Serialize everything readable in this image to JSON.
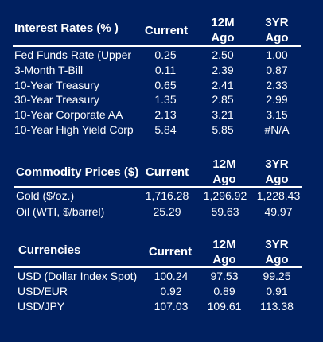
{
  "interest_rates": {
    "title": "Interest Rates (% )",
    "columns": [
      "Current",
      "12M\nAgo",
      "3YR\nAgo"
    ],
    "rows": [
      {
        "name": "Fed Funds Rate (Upper",
        "current": "0.25",
        "ago_12m": "2.50",
        "ago_3yr": "1.00"
      },
      {
        "name": "3-Month T-Bill",
        "current": "0.11",
        "ago_12m": "2.39",
        "ago_3yr": "0.87"
      },
      {
        "name": "10-Year Treasury",
        "current": "0.65",
        "ago_12m": "2.41",
        "ago_3yr": "2.33"
      },
      {
        "name": "30-Year Treasury",
        "current": "1.35",
        "ago_12m": "2.85",
        "ago_3yr": "2.99"
      },
      {
        "name": "10-Year Corporate AA",
        "current": "2.13",
        "ago_12m": "3.21",
        "ago_3yr": "3.15"
      },
      {
        "name": "10-Year High Yield Corp",
        "current": "5.84",
        "ago_12m": "5.85",
        "ago_3yr": "#N/A"
      }
    ]
  },
  "commodity_prices": {
    "title": "Commodity Prices ($)",
    "columns": [
      "Current",
      "12M\nAgo",
      "3YR\nAgo"
    ],
    "rows": [
      {
        "name": "Gold    ($/oz.)",
        "current": "1,716.28",
        "ago_12m": "1,296.92",
        "ago_3yr": "1,228.43"
      },
      {
        "name": "Oil (WTI, $/barrel)",
        "current": "25.29",
        "ago_12m": "59.63",
        "ago_3yr": "49.97"
      }
    ]
  },
  "currencies": {
    "title": "Currencies",
    "columns": [
      "Current",
      "12M\nAgo",
      "3YR\nAgo"
    ],
    "rows": [
      {
        "name": "USD (Dollar Index Spot)",
        "current": "100.24",
        "ago_12m": "97.53",
        "ago_3yr": "99.25"
      },
      {
        "name": "USD/EUR",
        "current": "0.92",
        "ago_12m": "0.89",
        "ago_3yr": "0.91"
      },
      {
        "name": "USD/JPY",
        "current": "107.03",
        "ago_12m": "109.61",
        "ago_3yr": "113.38"
      }
    ]
  },
  "colors": {
    "background": "#002060",
    "text": "#ffffff",
    "rule": "#ffffff"
  }
}
